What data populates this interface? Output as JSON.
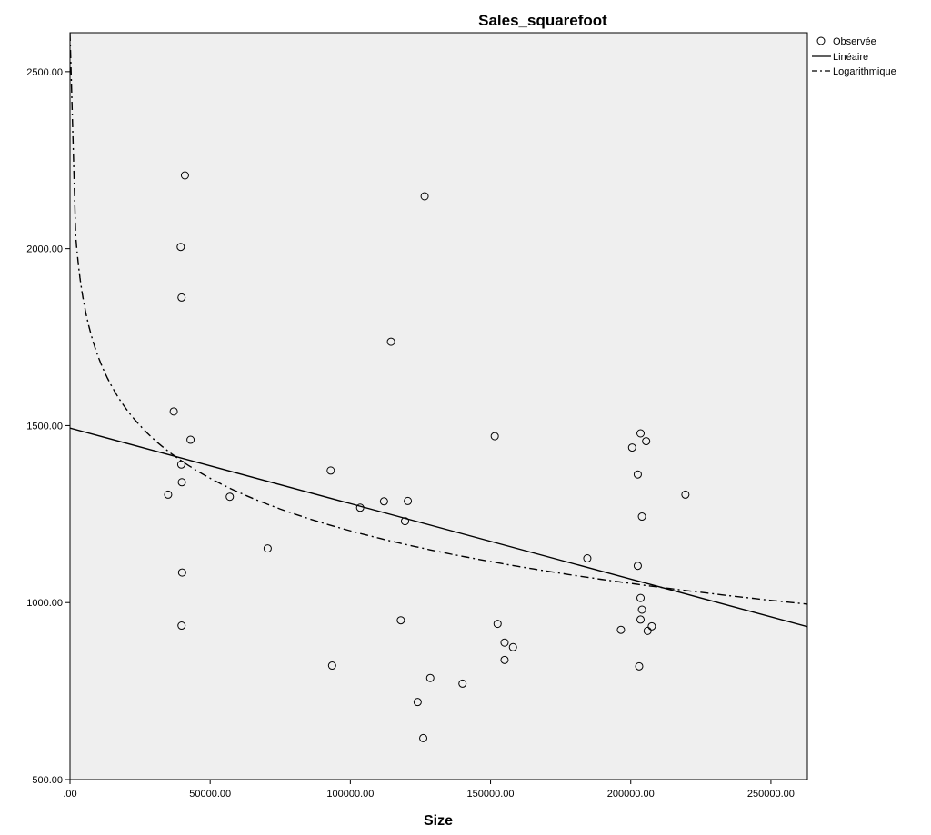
{
  "chart_data": {
    "type": "scatter",
    "title": "Sales_squarefoot",
    "xlabel": "Size",
    "ylabel": "",
    "xlim": [
      0,
      263000
    ],
    "ylim": [
      500,
      2610
    ],
    "x_ticks": [
      0,
      50000,
      100000,
      150000,
      200000,
      250000
    ],
    "x_tick_labels": [
      ".00",
      "50000.00",
      "100000.00",
      "150000.00",
      "200000.00",
      "250000.00"
    ],
    "y_ticks": [
      500,
      1000,
      1500,
      2000,
      2500
    ],
    "y_tick_labels": [
      "500.00",
      "1000.00",
      "1500.00",
      "2000.00",
      "2500.00"
    ],
    "grid": false,
    "legend_position": "top-right",
    "legend": {
      "observed": "Observée",
      "linear": "Linéaire",
      "log": "Logarithmique"
    },
    "series": [
      {
        "name": "Observée",
        "type": "scatter",
        "points": [
          [
            41000,
            2207
          ],
          [
            39500,
            2005
          ],
          [
            39800,
            1862
          ],
          [
            37000,
            1540
          ],
          [
            43000,
            1460
          ],
          [
            39700,
            1390
          ],
          [
            39900,
            1340
          ],
          [
            35000,
            1305
          ],
          [
            40000,
            1085
          ],
          [
            39800,
            935
          ],
          [
            57000,
            1299
          ],
          [
            70500,
            1153
          ],
          [
            93000,
            1373
          ],
          [
            93500,
            822
          ],
          [
            103500,
            1268
          ],
          [
            112000,
            1286
          ],
          [
            120500,
            1287
          ],
          [
            119500,
            1230
          ],
          [
            118000,
            950
          ],
          [
            114500,
            1737
          ],
          [
            126500,
            2148
          ],
          [
            128500,
            787
          ],
          [
            124000,
            719
          ],
          [
            126000,
            617
          ],
          [
            140000,
            771
          ],
          [
            151500,
            1470
          ],
          [
            152500,
            940
          ],
          [
            155000,
            887
          ],
          [
            155000,
            838
          ],
          [
            158000,
            874
          ],
          [
            184500,
            1125
          ],
          [
            196500,
            923
          ],
          [
            200500,
            1438
          ],
          [
            202500,
            1362
          ],
          [
            203500,
            1478
          ],
          [
            205500,
            1456
          ],
          [
            204000,
            1243
          ],
          [
            202500,
            1104
          ],
          [
            203500,
            1013
          ],
          [
            204000,
            980
          ],
          [
            203500,
            952
          ],
          [
            206000,
            920
          ],
          [
            207500,
            933
          ],
          [
            203000,
            820
          ],
          [
            219500,
            1305
          ]
        ]
      },
      {
        "name": "Linéaire",
        "type": "line",
        "intercept": 1493,
        "slope": -0.002133
      },
      {
        "name": "Logarithmique",
        "type": "line",
        "a": 3670,
        "b": -214.3
      }
    ],
    "colors": {
      "plot_background": "#efefef",
      "marks": "#000000"
    }
  }
}
